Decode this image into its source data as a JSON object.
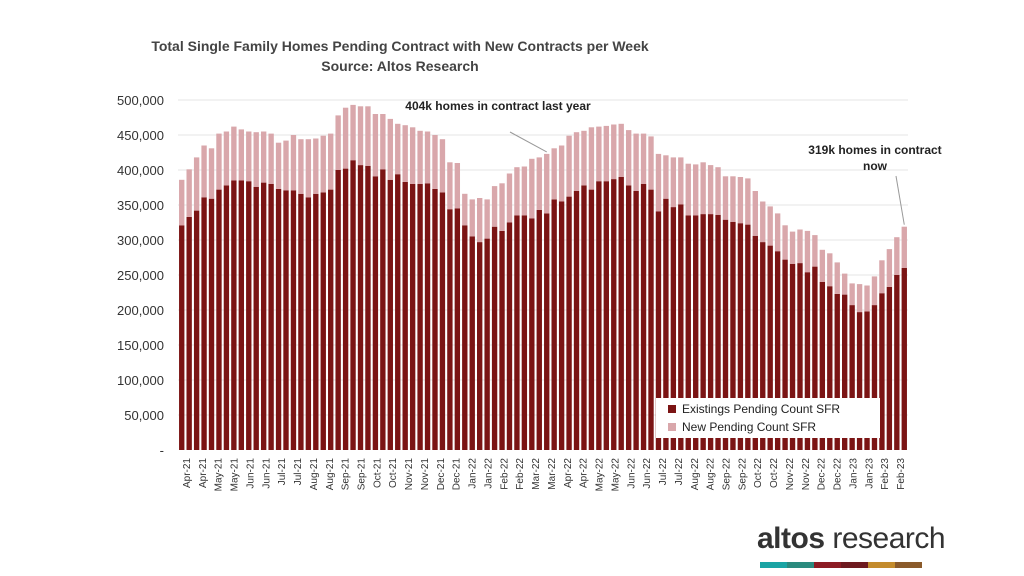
{
  "title": "Total Single Family Homes Pending Contract with New Contracts per Week",
  "subtitle": "Source: Altos Research",
  "annotations": {
    "last_year": "404k homes in contract last year",
    "now": "319k homes in contract now"
  },
  "legend": {
    "existing": "Existings Pending Count SFR",
    "new": "New Pending Count SFR"
  },
  "brand": {
    "bold": "altos",
    "light": " research",
    "bar_colors": [
      "#1aa4a4",
      "#2a8a7e",
      "#8c1c24",
      "#6e1a1f",
      "#c38b2c",
      "#8a5a2a"
    ]
  },
  "colors": {
    "existing": "#7b1414",
    "new": "#d9a7ab",
    "grid": "#e6e6e6"
  },
  "chart_data": {
    "type": "bar",
    "stacked": true,
    "ylim": [
      0,
      500000
    ],
    "y_ticks": [
      0,
      50000,
      100000,
      150000,
      200000,
      250000,
      300000,
      350000,
      400000,
      450000,
      500000
    ],
    "y_tick_labels": [
      "-",
      "50,000",
      "100,000",
      "150,000",
      "200,000",
      "250,000",
      "300,000",
      "350,000",
      "400,000",
      "450,000",
      "500,000"
    ],
    "grid": true,
    "legend_position": "bottom-right",
    "x_tick_labels": [
      "Apr-21",
      "Apr-21",
      "May-21",
      "May-21",
      "Jun-21",
      "Jun-21",
      "Jul-21",
      "Jul-21",
      "Aug-21",
      "Aug-21",
      "Sep-21",
      "Sep-21",
      "Oct-21",
      "Oct-21",
      "Nov-21",
      "Nov-21",
      "Dec-21",
      "Dec-21",
      "Jan-22",
      "Jan-22",
      "Feb-22",
      "Feb-22",
      "Mar-22",
      "Mar-22",
      "Apr-22",
      "Apr-22",
      "May-22",
      "May-22",
      "Jun-22",
      "Jun-22",
      "Jul-22",
      "Jul-22",
      "Aug-22",
      "Aug-22",
      "Sep-22",
      "Sep-22",
      "Oct-22",
      "Oct-22",
      "Nov-22",
      "Nov-22",
      "Dec-22",
      "Dec-22",
      "Jan-23",
      "Jan-23",
      "Feb-23",
      "Feb-23"
    ],
    "series": [
      {
        "name": "Existings Pending Count SFR",
        "values": [
          321000,
          333000,
          342000,
          361000,
          359000,
          372000,
          378000,
          385000,
          385000,
          384000,
          376000,
          382000,
          380000,
          373000,
          371000,
          371000,
          366000,
          361000,
          366000,
          368000,
          372000,
          400000,
          402000,
          414000,
          407000,
          406000,
          391000,
          401000,
          386000,
          394000,
          383000,
          380000,
          380000,
          381000,
          373000,
          368000,
          344000,
          345000,
          321000,
          305000,
          297000,
          302000,
          319000,
          313000,
          325000,
          335000,
          335000,
          331000,
          343000,
          338000,
          358000,
          355000,
          362000,
          370000,
          378000,
          372000,
          384000,
          384000,
          387000,
          390000,
          378000,
          370000,
          380000,
          372000,
          341000,
          359000,
          347000,
          351000,
          335000,
          335000,
          337000,
          337000,
          336000,
          329000,
          326000,
          324000,
          322000,
          306000,
          297000,
          292000,
          284000,
          272000,
          266000,
          267000,
          254000,
          262000,
          240000,
          234000,
          223000,
          222000,
          207000,
          197000,
          198000,
          207000,
          224000,
          233000,
          250000,
          260000
        ]
      },
      {
        "name": "New Pending Count SFR",
        "values": [
          65000,
          68000,
          76000,
          74000,
          72000,
          80000,
          77000,
          77000,
          73000,
          71000,
          78000,
          73000,
          72000,
          66000,
          71000,
          79000,
          78000,
          83000,
          79000,
          81000,
          80000,
          78000,
          87000,
          79000,
          84000,
          85000,
          89000,
          79000,
          87000,
          72000,
          81000,
          81000,
          76000,
          74000,
          77000,
          76000,
          67000,
          65000,
          45000,
          53000,
          63000,
          56000,
          58000,
          68000,
          70000,
          69000,
          70000,
          85000,
          75000,
          85000,
          73000,
          80000,
          87000,
          84000,
          78000,
          89000,
          78000,
          79000,
          78000,
          76000,
          79000,
          82000,
          72000,
          76000,
          82000,
          62000,
          71000,
          67000,
          74000,
          73000,
          74000,
          70000,
          68000,
          62000,
          65000,
          66000,
          66000,
          64000,
          58000,
          56000,
          54000,
          49000,
          46000,
          48000,
          59000,
          45000,
          46000,
          47000,
          45000,
          30000,
          31000,
          40000,
          37000,
          41000,
          47000,
          54000,
          54000,
          59000
        ]
      }
    ]
  }
}
